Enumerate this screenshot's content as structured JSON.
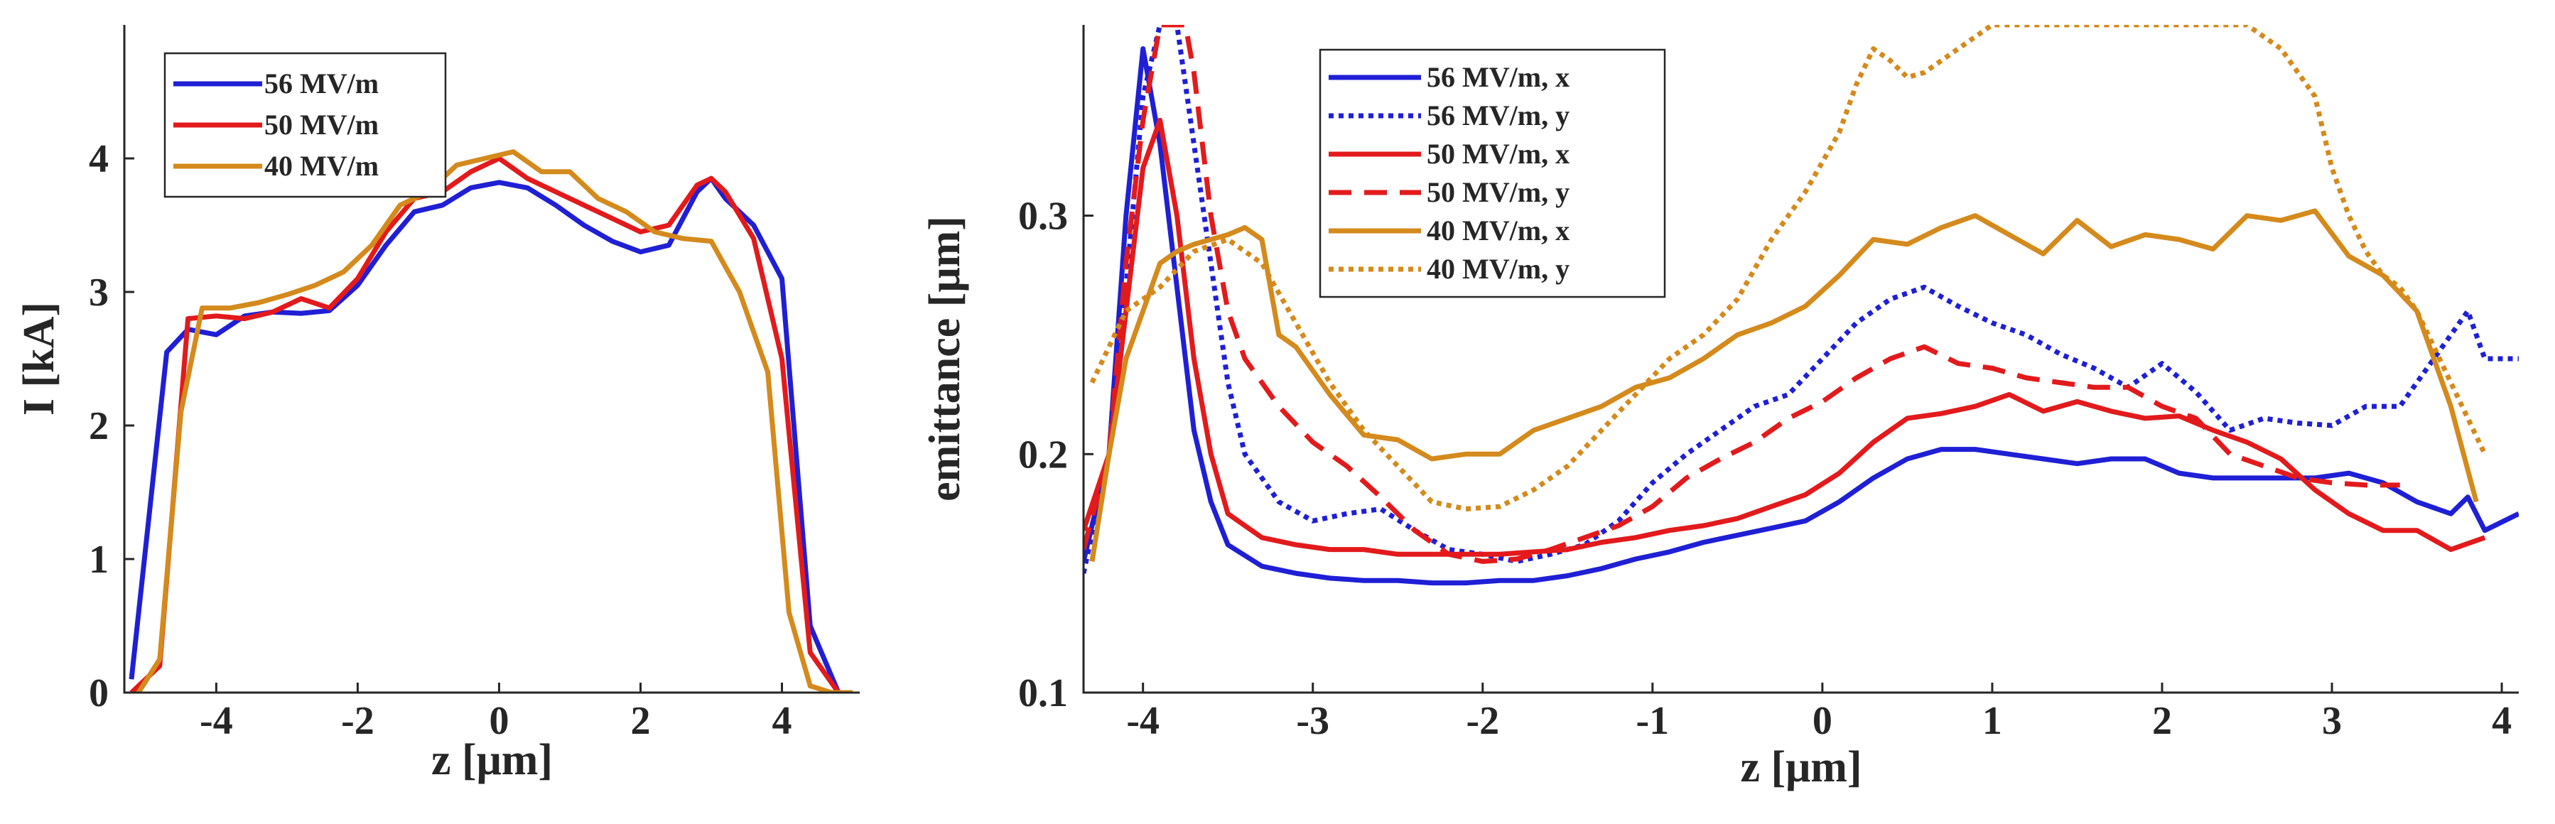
{
  "chart_data": [
    {
      "type": "line",
      "xlabel": "z [μm]",
      "ylabel": "I [kA]",
      "xlim": [
        -5.3,
        5.1
      ],
      "ylim": [
        0,
        5
      ],
      "xticks": [
        -4,
        -2,
        0,
        2,
        4
      ],
      "xtick_labels": [
        "-4",
        "-2",
        "0",
        "2",
        "4"
      ],
      "yticks": [
        0,
        1,
        2,
        3,
        4
      ],
      "ytick_labels": [
        "0",
        "1",
        "2",
        "3",
        "4"
      ],
      "legend": "top-left",
      "series": [
        {
          "name": "56 MV/m",
          "color": "#1f1fd6",
          "style": "solid",
          "x": [
            -5.2,
            -4.7,
            -4.4,
            -4.0,
            -3.6,
            -3.2,
            -2.8,
            -2.4,
            -2.0,
            -1.6,
            -1.2,
            -0.8,
            -0.4,
            0.0,
            0.4,
            0.8,
            1.2,
            1.6,
            2.0,
            2.4,
            2.8,
            3.0,
            3.2,
            3.6,
            4.0,
            4.4,
            4.8
          ],
          "y": [
            0.1,
            2.55,
            2.72,
            2.68,
            2.82,
            2.85,
            2.84,
            2.86,
            3.05,
            3.35,
            3.6,
            3.65,
            3.78,
            3.82,
            3.78,
            3.65,
            3.5,
            3.38,
            3.3,
            3.35,
            3.75,
            3.85,
            3.7,
            3.5,
            3.1,
            0.5,
            0.0
          ]
        },
        {
          "name": "50 MV/m",
          "color": "#e31a1c",
          "style": "solid",
          "x": [
            -5.2,
            -4.8,
            -4.4,
            -4.0,
            -3.6,
            -3.2,
            -2.8,
            -2.4,
            -2.0,
            -1.6,
            -1.2,
            -0.8,
            -0.4,
            0.0,
            0.4,
            0.8,
            1.2,
            1.6,
            2.0,
            2.4,
            2.8,
            3.0,
            3.2,
            3.6,
            4.0,
            4.4,
            4.8
          ],
          "y": [
            0.0,
            0.2,
            2.8,
            2.82,
            2.8,
            2.85,
            2.95,
            2.88,
            3.1,
            3.45,
            3.7,
            3.75,
            3.9,
            4.0,
            3.85,
            3.75,
            3.65,
            3.55,
            3.45,
            3.5,
            3.8,
            3.85,
            3.75,
            3.4,
            2.5,
            0.3,
            0.0
          ]
        },
        {
          "name": "40 MV/m",
          "color": "#d48a1c",
          "style": "solid",
          "x": [
            -5.1,
            -4.8,
            -4.5,
            -4.2,
            -3.8,
            -3.4,
            -3.0,
            -2.6,
            -2.2,
            -1.8,
            -1.4,
            -1.0,
            -0.6,
            -0.2,
            0.2,
            0.6,
            1.0,
            1.4,
            1.8,
            2.2,
            2.6,
            3.0,
            3.4,
            3.8,
            4.1,
            4.4,
            4.7,
            5.0
          ],
          "y": [
            0.0,
            0.25,
            2.1,
            2.88,
            2.88,
            2.92,
            2.98,
            3.05,
            3.15,
            3.35,
            3.65,
            3.75,
            3.95,
            4.0,
            4.05,
            3.9,
            3.9,
            3.7,
            3.6,
            3.45,
            3.4,
            3.38,
            3.0,
            2.4,
            0.6,
            0.05,
            0.0,
            0.0
          ]
        }
      ]
    },
    {
      "type": "line",
      "xlabel": "z [μm]",
      "ylabel": "emittance [μm]",
      "xlim": [
        -4.35,
        4.1
      ],
      "ylim": [
        0.1,
        0.38
      ],
      "xticks": [
        -4,
        -3,
        -2,
        -1,
        0,
        1,
        2,
        3,
        4
      ],
      "xtick_labels": [
        "-4",
        "-3",
        "-2",
        "-1",
        "0",
        "1",
        "2",
        "3",
        "4"
      ],
      "yticks": [
        0.1,
        0.2,
        0.3
      ],
      "ytick_labels": [
        "0.1",
        "0.2",
        "0.3"
      ],
      "legend": "top-center",
      "series": [
        {
          "name": "56 MV/m, x",
          "color": "#1f1fd6",
          "style": "solid",
          "x": [
            -4.35,
            -4.2,
            -4.1,
            -4.0,
            -3.9,
            -3.8,
            -3.7,
            -3.6,
            -3.5,
            -3.3,
            -3.1,
            -2.9,
            -2.7,
            -2.5,
            -2.3,
            -2.1,
            -1.9,
            -1.7,
            -1.5,
            -1.3,
            -1.1,
            -0.9,
            -0.7,
            -0.5,
            -0.3,
            -0.1,
            0.1,
            0.3,
            0.5,
            0.7,
            0.9,
            1.1,
            1.3,
            1.5,
            1.7,
            1.9,
            2.1,
            2.3,
            2.5,
            2.7,
            2.9,
            3.1,
            3.3,
            3.5,
            3.7,
            3.8,
            3.9,
            4.1
          ],
          "y": [
            0.155,
            0.2,
            0.3,
            0.37,
            0.33,
            0.27,
            0.21,
            0.18,
            0.162,
            0.153,
            0.15,
            0.148,
            0.147,
            0.147,
            0.146,
            0.146,
            0.147,
            0.147,
            0.149,
            0.152,
            0.156,
            0.159,
            0.163,
            0.166,
            0.169,
            0.172,
            0.18,
            0.19,
            0.198,
            0.202,
            0.202,
            0.2,
            0.198,
            0.196,
            0.198,
            0.198,
            0.192,
            0.19,
            0.19,
            0.19,
            0.19,
            0.192,
            0.188,
            0.18,
            0.175,
            0.182,
            0.168,
            0.175
          ]
        },
        {
          "name": "56 MV/m, y",
          "color": "#1f1fd6",
          "style": "dotted",
          "x": [
            -4.35,
            -4.2,
            -4.1,
            -4.0,
            -3.9,
            -3.8,
            -3.7,
            -3.6,
            -3.5,
            -3.4,
            -3.2,
            -3.0,
            -2.8,
            -2.6,
            -2.4,
            -2.2,
            -2.0,
            -1.8,
            -1.6,
            -1.4,
            -1.2,
            -1.0,
            -0.8,
            -0.6,
            -0.4,
            -0.2,
            0.0,
            0.2,
            0.4,
            0.6,
            0.8,
            1.0,
            1.2,
            1.4,
            1.6,
            1.8,
            2.0,
            2.2,
            2.4,
            2.6,
            2.8,
            3.0,
            3.2,
            3.4,
            3.6,
            3.8,
            3.9,
            4.1
          ],
          "y": [
            0.15,
            0.2,
            0.27,
            0.35,
            0.38,
            0.38,
            0.33,
            0.28,
            0.23,
            0.2,
            0.18,
            0.172,
            0.175,
            0.177,
            0.168,
            0.16,
            0.158,
            0.155,
            0.158,
            0.162,
            0.172,
            0.188,
            0.2,
            0.21,
            0.22,
            0.225,
            0.24,
            0.255,
            0.265,
            0.27,
            0.262,
            0.255,
            0.25,
            0.242,
            0.236,
            0.228,
            0.238,
            0.226,
            0.21,
            0.215,
            0.213,
            0.212,
            0.22,
            0.22,
            0.24,
            0.26,
            0.24,
            0.24
          ]
        },
        {
          "name": "50 MV/m, x",
          "color": "#e31a1c",
          "style": "solid",
          "x": [
            -4.35,
            -4.2,
            -4.1,
            -4.0,
            -3.9,
            -3.8,
            -3.7,
            -3.6,
            -3.5,
            -3.3,
            -3.1,
            -2.9,
            -2.7,
            -2.5,
            -2.3,
            -2.1,
            -1.9,
            -1.7,
            -1.5,
            -1.3,
            -1.1,
            -0.9,
            -0.7,
            -0.5,
            -0.3,
            -0.1,
            0.1,
            0.3,
            0.5,
            0.7,
            0.9,
            1.1,
            1.3,
            1.5,
            1.7,
            1.9,
            2.1,
            2.3,
            2.5,
            2.7,
            2.9,
            3.1,
            3.3,
            3.5,
            3.7,
            3.9
          ],
          "y": [
            0.168,
            0.2,
            0.26,
            0.32,
            0.34,
            0.3,
            0.24,
            0.2,
            0.175,
            0.165,
            0.162,
            0.16,
            0.16,
            0.158,
            0.158,
            0.158,
            0.158,
            0.159,
            0.16,
            0.163,
            0.165,
            0.168,
            0.17,
            0.173,
            0.178,
            0.183,
            0.192,
            0.205,
            0.215,
            0.217,
            0.22,
            0.225,
            0.218,
            0.222,
            0.218,
            0.215,
            0.216,
            0.21,
            0.205,
            0.198,
            0.185,
            0.175,
            0.168,
            0.168,
            0.16,
            0.165
          ]
        },
        {
          "name": "50 MV/m, y",
          "color": "#e31a1c",
          "style": "dashed",
          "x": [
            -4.35,
            -4.2,
            -4.1,
            -4.0,
            -3.9,
            -3.8,
            -3.75,
            -3.7,
            -3.6,
            -3.5,
            -3.4,
            -3.2,
            -3.0,
            -2.8,
            -2.6,
            -2.4,
            -2.2,
            -2.0,
            -1.8,
            -1.6,
            -1.4,
            -1.2,
            -1.0,
            -0.8,
            -0.6,
            -0.4,
            -0.2,
            0.0,
            0.2,
            0.4,
            0.6,
            0.8,
            1.0,
            1.2,
            1.4,
            1.6,
            1.8,
            2.0,
            2.2,
            2.4,
            2.6,
            2.8,
            3.0,
            3.2,
            3.4
          ],
          "y": [
            0.16,
            0.2,
            0.28,
            0.34,
            0.38,
            0.38,
            0.38,
            0.36,
            0.3,
            0.26,
            0.24,
            0.22,
            0.205,
            0.195,
            0.182,
            0.168,
            0.158,
            0.155,
            0.156,
            0.16,
            0.165,
            0.17,
            0.178,
            0.19,
            0.198,
            0.205,
            0.215,
            0.222,
            0.232,
            0.24,
            0.245,
            0.238,
            0.236,
            0.232,
            0.23,
            0.228,
            0.228,
            0.22,
            0.215,
            0.2,
            0.195,
            0.19,
            0.188,
            0.187,
            0.187
          ]
        },
        {
          "name": "40 MV/m, x",
          "color": "#d48a1c",
          "style": "solid",
          "x": [
            -4.3,
            -4.2,
            -4.1,
            -4.0,
            -3.9,
            -3.8,
            -3.7,
            -3.6,
            -3.5,
            -3.4,
            -3.3,
            -3.2,
            -3.1,
            -2.9,
            -2.7,
            -2.5,
            -2.3,
            -2.1,
            -1.9,
            -1.7,
            -1.5,
            -1.3,
            -1.1,
            -0.9,
            -0.7,
            -0.5,
            -0.3,
            -0.1,
            0.1,
            0.3,
            0.5,
            0.7,
            0.9,
            1.1,
            1.3,
            1.5,
            1.7,
            1.9,
            2.1,
            2.3,
            2.5,
            2.7,
            2.9,
            3.1,
            3.3,
            3.5,
            3.7,
            3.85
          ],
          "y": [
            0.155,
            0.2,
            0.24,
            0.26,
            0.28,
            0.285,
            0.288,
            0.29,
            0.292,
            0.295,
            0.29,
            0.25,
            0.245,
            0.225,
            0.208,
            0.206,
            0.198,
            0.2,
            0.2,
            0.21,
            0.215,
            0.22,
            0.228,
            0.232,
            0.24,
            0.25,
            0.255,
            0.262,
            0.275,
            0.29,
            0.288,
            0.295,
            0.3,
            0.292,
            0.284,
            0.298,
            0.287,
            0.292,
            0.29,
            0.286,
            0.3,
            0.298,
            0.302,
            0.283,
            0.275,
            0.26,
            0.22,
            0.18
          ]
        },
        {
          "name": "40 MV/m, y",
          "color": "#d48a1c",
          "style": "dotted",
          "x": [
            -4.3,
            -4.1,
            -3.9,
            -3.7,
            -3.5,
            -3.3,
            -3.1,
            -2.9,
            -2.7,
            -2.5,
            -2.3,
            -2.1,
            -1.9,
            -1.7,
            -1.5,
            -1.3,
            -1.1,
            -0.9,
            -0.7,
            -0.5,
            -0.3,
            -0.1,
            0.1,
            0.2,
            0.3,
            0.4,
            0.5,
            0.6,
            0.7,
            0.8,
            0.9,
            1.0,
            2.5,
            2.6,
            2.7,
            2.8,
            2.9,
            3.0,
            3.1,
            3.2,
            3.3,
            3.4,
            3.5,
            3.6,
            3.7,
            3.8,
            3.9
          ],
          "y": [
            0.23,
            0.26,
            0.27,
            0.285,
            0.29,
            0.28,
            0.255,
            0.23,
            0.21,
            0.195,
            0.18,
            0.177,
            0.178,
            0.185,
            0.195,
            0.21,
            0.225,
            0.24,
            0.25,
            0.265,
            0.29,
            0.31,
            0.335,
            0.355,
            0.37,
            0.365,
            0.358,
            0.36,
            0.365,
            0.37,
            0.375,
            0.38,
            0.38,
            0.375,
            0.37,
            0.36,
            0.35,
            0.32,
            0.3,
            0.285,
            0.275,
            0.27,
            0.26,
            0.245,
            0.23,
            0.215,
            0.2
          ]
        }
      ]
    }
  ]
}
